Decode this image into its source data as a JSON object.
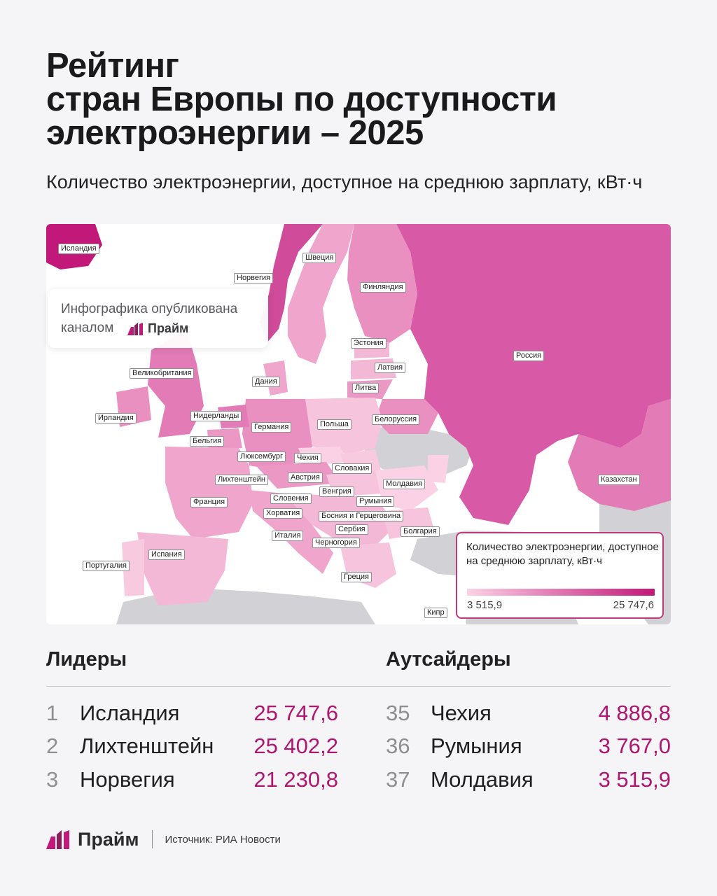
{
  "title": {
    "line1": "Рейтинг",
    "line2": "стран Европы по доступности",
    "line3": "электроэнергии – 2025"
  },
  "subtitle": "Количество электроэнергии, доступное на среднюю зарплату, кВт·ч",
  "promo": {
    "line1": "Инфографика опубликована",
    "line2": "каналом",
    "brand": "Прайм"
  },
  "map": {
    "labels": [
      "Исландия",
      "Норвегия",
      "Швеция",
      "Финляндия",
      "Эстония",
      "Латвия",
      "Литва",
      "Россия",
      "Великобритания",
      "Дания",
      "Ирландия",
      "Нидерланды",
      "Германия",
      "Польша",
      "Белоруссия",
      "Бельгия",
      "Люксембург",
      "Чехия",
      "Словакия",
      "Лихтенштейн",
      "Австрия",
      "Молдавия",
      "Франция",
      "Венгрия",
      "Словения",
      "Румыния",
      "Хорватия",
      "Босния и Герцеговина",
      "Сербия",
      "Болгария",
      "Италия",
      "Черногория",
      "Португалия",
      "Испания",
      "Греция",
      "Кипр",
      "Казахстан"
    ],
    "colors": {
      "max": "#c2187a",
      "min": "#fbd2e5",
      "no_data": "#d1d1d6"
    }
  },
  "legend": {
    "title": "Количество электроэнергии, доступное на среднюю зарплату, кВт·ч",
    "min": "3 515,9",
    "max": "25 747,6"
  },
  "leaders": {
    "heading": "Лидеры",
    "items": [
      {
        "rank": "1",
        "country": "Исландия",
        "value": "25 747,6"
      },
      {
        "rank": "2",
        "country": "Лихтенштейн",
        "value": "25 402,2"
      },
      {
        "rank": "3",
        "country": "Норвегия",
        "value": "21 230,8"
      }
    ]
  },
  "outsiders": {
    "heading": "Аутсайдеры",
    "items": [
      {
        "rank": "35",
        "country": "Чехия",
        "value": "4 886,8"
      },
      {
        "rank": "36",
        "country": "Румыния",
        "value": "3 767,0"
      },
      {
        "rank": "37",
        "country": "Молдавия",
        "value": "3 515,9"
      }
    ]
  },
  "footer": {
    "brand": "Прайм",
    "source": "Источник: РИА Новости"
  }
}
